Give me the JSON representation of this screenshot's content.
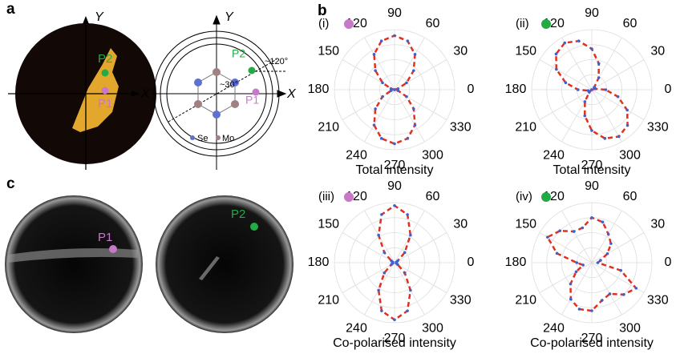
{
  "figure": {
    "panel_labels": [
      "a",
      "b",
      "c"
    ],
    "panel_a": {
      "axis_x": "X",
      "axis_y": "Y",
      "p1": "P1",
      "p2": "P2",
      "angle_30": "~30°",
      "angle_120": "~120°",
      "se": "Se",
      "mo": "Mo"
    },
    "panel_c": {
      "p1": "P1",
      "p2": "P2"
    }
  },
  "chart_data": [
    {
      "type": "polar",
      "panel": "(i)",
      "marker_color": "#c878c8",
      "xlabel": "Total intensity",
      "rlim": [
        0,
        1
      ],
      "rticks": [
        0.25,
        0.5,
        0.75,
        1
      ],
      "thetaticks": [
        0,
        30,
        60,
        90,
        120,
        150,
        180,
        210,
        240,
        270,
        300,
        330
      ],
      "line_color": "#e03020",
      "point_color": "#4060d0",
      "x": [
        0,
        15,
        30,
        45,
        60,
        75,
        90,
        105,
        120,
        135,
        150,
        165,
        180,
        195,
        210,
        225,
        240,
        255,
        270,
        285,
        300,
        315,
        330,
        345
      ],
      "values": [
        0,
        0.06,
        0.23,
        0.45,
        0.68,
        0.84,
        0.9,
        0.84,
        0.68,
        0.45,
        0.23,
        0.06,
        0,
        0.06,
        0.23,
        0.45,
        0.68,
        0.84,
        0.9,
        0.84,
        0.68,
        0.45,
        0.23,
        0.06
      ]
    },
    {
      "type": "polar",
      "panel": "(ii)",
      "marker_color": "#22aa44",
      "xlabel": "Total intensity",
      "rlim": [
        0,
        1
      ],
      "rticks": [
        0.25,
        0.5,
        0.75,
        1
      ],
      "thetaticks": [
        0,
        30,
        60,
        90,
        120,
        150,
        180,
        210,
        240,
        270,
        300,
        330
      ],
      "line_color": "#e03020",
      "point_color": "#4060d0",
      "x": [
        0,
        15,
        30,
        45,
        60,
        75,
        90,
        105,
        120,
        135,
        150,
        165,
        180,
        195,
        210,
        225,
        240,
        255,
        270,
        285,
        300,
        315,
        330,
        345
      ],
      "values": [
        0.23,
        0.06,
        0,
        0.06,
        0.23,
        0.45,
        0.68,
        0.84,
        0.9,
        0.84,
        0.68,
        0.45,
        0.23,
        0.06,
        0,
        0.06,
        0.23,
        0.45,
        0.68,
        0.84,
        0.9,
        0.84,
        0.68,
        0.45
      ]
    },
    {
      "type": "polar",
      "panel": "(iii)",
      "marker_color": "#c878c8",
      "xlabel": "Co-polarised intensity",
      "rlim": [
        0,
        1
      ],
      "rticks": [
        0.25,
        0.5,
        0.75,
        1
      ],
      "thetaticks": [
        0,
        30,
        60,
        90,
        120,
        150,
        180,
        210,
        240,
        270,
        300,
        330
      ],
      "line_color": "#e03020",
      "point_color": "#4060d0",
      "x": [
        0,
        15,
        30,
        45,
        60,
        75,
        90,
        105,
        120,
        135,
        150,
        165,
        180,
        195,
        210,
        225,
        240,
        255,
        270,
        285,
        300,
        315,
        330,
        345
      ],
      "values": [
        0.03,
        0.03,
        0.06,
        0.24,
        0.53,
        0.83,
        0.95,
        0.83,
        0.53,
        0.24,
        0.06,
        0.03,
        0.03,
        0.03,
        0.06,
        0.24,
        0.53,
        0.83,
        0.95,
        0.83,
        0.53,
        0.24,
        0.06,
        0.03
      ]
    },
    {
      "type": "polar",
      "panel": "(iv)",
      "marker_color": "#22aa44",
      "xlabel": "Co-polarised intensity",
      "rlim": [
        0,
        1
      ],
      "rticks": [
        0.25,
        0.5,
        0.75,
        1
      ],
      "thetaticks": [
        0,
        30,
        60,
        90,
        120,
        150,
        180,
        210,
        240,
        270,
        300,
        330
      ],
      "line_color": "#e03020",
      "point_color": "#4060d0",
      "x": [
        0,
        15,
        30,
        45,
        60,
        75,
        90,
        105,
        120,
        135,
        150,
        165,
        180,
        195,
        210,
        225,
        240,
        255,
        270,
        285,
        300,
        315,
        330,
        345
      ],
      "values": [
        0.1,
        0.15,
        0.3,
        0.45,
        0.55,
        0.7,
        0.75,
        0.6,
        0.6,
        0.75,
        0.85,
        0.6,
        0.25,
        0.15,
        0.3,
        0.5,
        0.7,
        0.8,
        0.8,
        0.65,
        0.6,
        0.75,
        0.85,
        0.5
      ]
    }
  ]
}
